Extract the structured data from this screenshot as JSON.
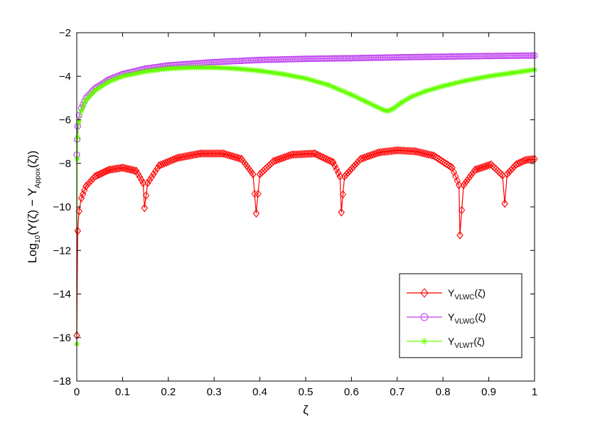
{
  "chart_data": {
    "type": "line",
    "xlabel": "ζ",
    "ylabel": {
      "base": "Log",
      "sub1": "10",
      "mid": "(Y(ζ) − Y",
      "sub2": "Appox",
      "end": "(ζ))"
    },
    "xlim": [
      0,
      1
    ],
    "ylim": [
      -18,
      -2
    ],
    "xticks": [
      "0",
      "0.1",
      "0.2",
      "0.3",
      "0.4",
      "0.5",
      "0.6",
      "0.7",
      "0.8",
      "0.9",
      "1"
    ],
    "yticks": [
      "−18",
      "−16",
      "−14",
      "−12",
      "−10",
      "−8",
      "−6",
      "−4",
      "−2"
    ],
    "legend_position": "lower-right",
    "series": [
      {
        "name": "Y_VLWC(ζ)",
        "label": {
          "base": "Y",
          "sub": "VLWC",
          "end": "(ζ)"
        },
        "color": "#ff0000",
        "marker": "diamond",
        "x": [
          0,
          0.002,
          0.005,
          0.01,
          0.02,
          0.04,
          0.07,
          0.1,
          0.13,
          0.145,
          0.148,
          0.155,
          0.18,
          0.22,
          0.27,
          0.32,
          0.36,
          0.385,
          0.392,
          0.4,
          0.43,
          0.47,
          0.52,
          0.56,
          0.575,
          0.578,
          0.585,
          0.62,
          0.66,
          0.7,
          0.74,
          0.78,
          0.82,
          0.835,
          0.837,
          0.845,
          0.87,
          0.905,
          0.93,
          0.935,
          0.94,
          0.96,
          0.98,
          1.0
        ],
        "y": [
          -15.9,
          -11.1,
          -10.2,
          -9.6,
          -9.05,
          -8.6,
          -8.3,
          -8.2,
          -8.35,
          -8.9,
          -10.05,
          -8.9,
          -8.1,
          -7.75,
          -7.55,
          -7.55,
          -7.8,
          -8.5,
          -10.3,
          -8.5,
          -7.9,
          -7.6,
          -7.55,
          -7.95,
          -8.6,
          -10.25,
          -8.6,
          -7.8,
          -7.5,
          -7.4,
          -7.45,
          -7.65,
          -8.2,
          -9.0,
          -11.3,
          -9.0,
          -8.3,
          -8.05,
          -8.55,
          -9.85,
          -8.5,
          -8.05,
          -7.85,
          -7.8
        ]
      },
      {
        "name": "Y_VLWG(ζ)",
        "label": {
          "base": "Y",
          "sub": "VLWG",
          "end": "(ζ)"
        },
        "color": "#bf40f0",
        "marker": "circle",
        "x": [
          0,
          0.001,
          0.002,
          0.005,
          0.01,
          0.02,
          0.04,
          0.07,
          0.1,
          0.15,
          0.2,
          0.3,
          0.4,
          0.5,
          0.6,
          0.7,
          0.8,
          0.9,
          1.0
        ],
        "y": [
          -7.6,
          -6.9,
          -6.3,
          -5.8,
          -5.45,
          -5.0,
          -4.55,
          -4.15,
          -3.9,
          -3.65,
          -3.5,
          -3.35,
          -3.25,
          -3.2,
          -3.17,
          -3.13,
          -3.1,
          -3.07,
          -3.05
        ]
      },
      {
        "name": "Y_VLWT(ζ)",
        "label": {
          "base": "Y",
          "sub": "VLWT",
          "end": "(ζ)"
        },
        "color": "#66ff00",
        "marker": "asterisk",
        "x": [
          0,
          0.001,
          0.002,
          0.005,
          0.01,
          0.02,
          0.04,
          0.07,
          0.1,
          0.15,
          0.2,
          0.25,
          0.3,
          0.35,
          0.4,
          0.45,
          0.5,
          0.55,
          0.6,
          0.63,
          0.65,
          0.67,
          0.68,
          0.69,
          0.71,
          0.73,
          0.76,
          0.8,
          0.85,
          0.9,
          0.95,
          1.0
        ],
        "y": [
          -16.3,
          -7.8,
          -6.8,
          -6.1,
          -5.6,
          -5.1,
          -4.65,
          -4.25,
          -4.0,
          -3.78,
          -3.65,
          -3.6,
          -3.6,
          -3.65,
          -3.75,
          -3.9,
          -4.1,
          -4.4,
          -4.85,
          -5.15,
          -5.35,
          -5.55,
          -5.6,
          -5.5,
          -5.2,
          -4.95,
          -4.7,
          -4.45,
          -4.2,
          -4.0,
          -3.85,
          -3.7
        ]
      }
    ]
  }
}
